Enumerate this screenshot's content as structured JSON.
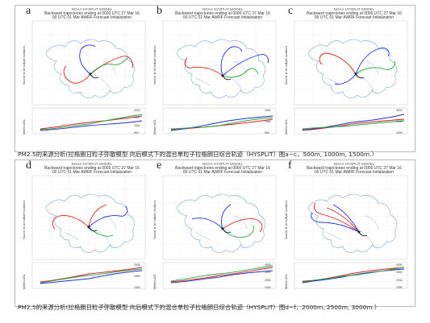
{
  "panels": [
    {
      "letter": "a",
      "model": "NOAA HYSPLIT MODEL",
      "title": "Backward trajectories ending at 0000 UTC 27 Mar 16",
      "subtitle": "00 UTC 01 Mar   AWRF  Forecast Initialization",
      "source_label": "Source ★ at multiple locations",
      "agl_label": "Meters AGL",
      "yticks": [
        "2000",
        "1500",
        "1000",
        "500"
      ]
    },
    {
      "letter": "b",
      "model": "NOAA HYSPLIT MODEL",
      "title": "Backward trajectories ending at 0000 UTC 27 Mar 16",
      "subtitle": "00 UTC 01 Mar   AWRF  Forecast Initialization",
      "source_label": "Source ★ at multiple locations",
      "agl_label": "Meters AGL",
      "yticks": [
        "1500",
        "1000",
        "500"
      ]
    },
    {
      "letter": "c",
      "model": "NOAA HYSPLIT MODEL",
      "title": "Backward trajectories ending at 0000 UTC 27 Mar 16",
      "subtitle": "00 UTC 01 Mar   AWRF  Forecast Initialization",
      "source_label": "Source ★ at multiple locations",
      "agl_label": "Meters AGL",
      "yticks": [
        "3000",
        "2000",
        "1000"
      ]
    },
    {
      "letter": "d",
      "model": "NOAA HYSPLIT MODEL",
      "title": "Backward trajectories ending at 0000 UTC 27 Mar 16",
      "subtitle": "00 UTC 01 Mar   AWRF  Forecast Initialization",
      "source_label": "Source ★ at multiple locations",
      "agl_label": "Meters AGL",
      "yticks": [
        "2000",
        "1500",
        "1000"
      ]
    },
    {
      "letter": "e",
      "model": "NOAA HYSPLIT MODEL",
      "title": "Backward trajectories ending at 0000 UTC 27 Mar 16",
      "subtitle": "00 UTC 01 Mar   AWRF  Forecast Initialization",
      "source_label": "Source ★ at multiple locations",
      "agl_label": "Meters AGL",
      "yticks": [
        "4000",
        "3000",
        "2000",
        "1000"
      ]
    },
    {
      "letter": "f",
      "model": "NOAA HYSPLIT MODEL",
      "title": "Backward trajectories ending at 0000 UTC 27 Mar 16",
      "subtitle": "00 UTC 01 Mar   AWRF  Forecast Initialization",
      "source_label": "Source ★ at multiple locations",
      "agl_label": "Meters AGL",
      "yticks": [
        "4000",
        "3000",
        "2000",
        "1000"
      ]
    }
  ],
  "captions": {
    "top": "PM2.5的来源分析(拉格朗日粒子弥散模型 向后模式下的混合单粒子拉格朗日综合轨迹（HYSPLIT）图a~c，500m, 1000m, 1500m.）",
    "bottom": "PM2.5的来源分析(拉格朗日粒子弥散模型 向后模式下的混合单粒子拉格朗日综合轨迹（HYSPLIT）图d~f，2000m, 2500m, 3000m.）"
  },
  "colors": {
    "map_outline": "#8fb3d9",
    "grid": "#d9d9d9",
    "traj_red": "#e01b1b",
    "traj_blue": "#1b2fd0",
    "traj_green": "#1fa83a",
    "traj_black": "#111111",
    "frame": "#b9b9b9"
  }
}
